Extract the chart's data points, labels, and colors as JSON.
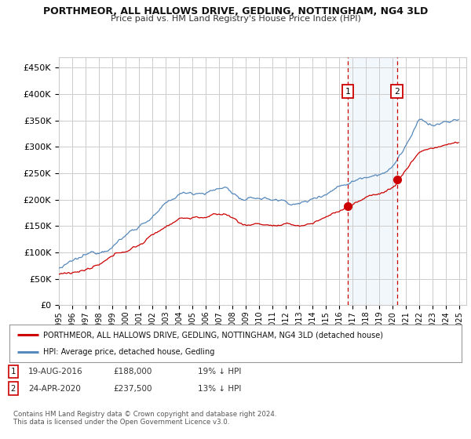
{
  "title": "PORTHMEOR, ALL HALLOWS DRIVE, GEDLING, NOTTINGHAM, NG4 3LD",
  "subtitle": "Price paid vs. HM Land Registry's House Price Index (HPI)",
  "ylim": [
    0,
    470000
  ],
  "yticks": [
    0,
    50000,
    100000,
    150000,
    200000,
    250000,
    300000,
    350000,
    400000,
    450000
  ],
  "ytick_labels": [
    "£0",
    "£50K",
    "£100K",
    "£150K",
    "£200K",
    "£250K",
    "£300K",
    "£350K",
    "£400K",
    "£450K"
  ],
  "hpi_color": "#5588bb",
  "price_color": "#cc0000",
  "sale1_x": 2016.64,
  "sale1_y": 188000,
  "sale2_x": 2020.31,
  "sale2_y": 237500,
  "sale1_date_label": "19-AUG-2016",
  "sale1_price_label": "£188,000",
  "sale1_hpi_pct": "19% ↓ HPI",
  "sale2_date_label": "24-APR-2020",
  "sale2_price_label": "£237,500",
  "sale2_hpi_pct": "13% ↓ HPI",
  "legend_label_red": "PORTHMEOR, ALL HALLOWS DRIVE, GEDLING, NOTTINGHAM, NG4 3LD (detached house)",
  "legend_label_blue": "HPI: Average price, detached house, Gedling",
  "footnote": "Contains HM Land Registry data © Crown copyright and database right 2024.\nThis data is licensed under the Open Government Licence v3.0.",
  "shade_color": "#cce0f0",
  "bg_color": "#ffffff",
  "plot_bg": "#ffffff",
  "grid_color": "#cccccc",
  "xlim_left": 1995,
  "xlim_right": 2025.5
}
